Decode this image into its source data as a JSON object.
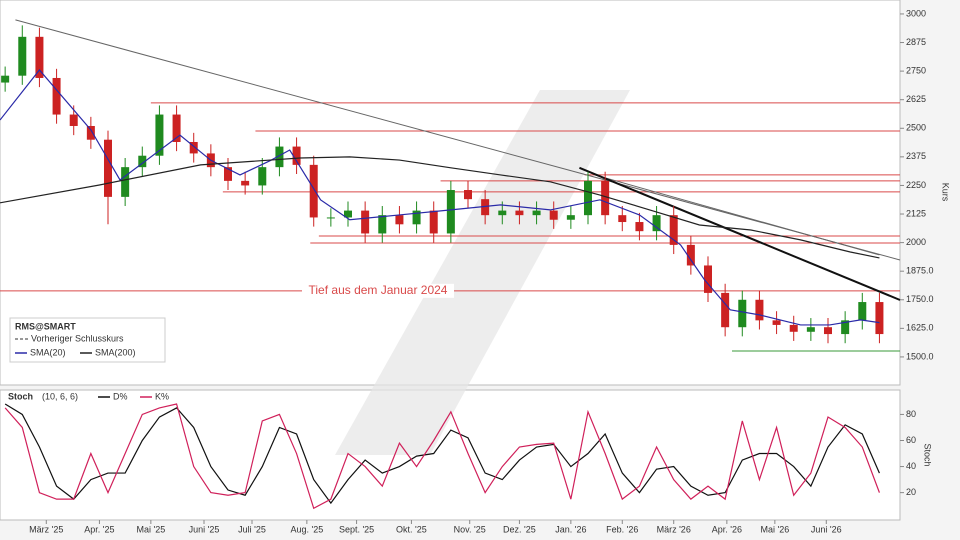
{
  "chart_data": [
    {
      "type": "candlestick",
      "symbol": "RMS@SMART",
      "y_label": "Kurs",
      "x": [
        3,
        13,
        23,
        33,
        43,
        53,
        63,
        73,
        83,
        93,
        103,
        113,
        123,
        133,
        143,
        153,
        163,
        173,
        183,
        193,
        203,
        213,
        223,
        233,
        243,
        253,
        263,
        273,
        283,
        293,
        303,
        313,
        323,
        333,
        343,
        353,
        363,
        373,
        383,
        393,
        403,
        413,
        423,
        433,
        443,
        453,
        463,
        473,
        483,
        493,
        503,
        513
      ],
      "open": [
        2700,
        2730,
        2900,
        2720,
        2560,
        2510,
        2450,
        2200,
        2330,
        2380,
        2560,
        2440,
        2390,
        2330,
        2270,
        2250,
        2330,
        2420,
        2340,
        2110,
        2110,
        2140,
        2040,
        2120,
        2080,
        2140,
        2040,
        2230,
        2190,
        2120,
        2140,
        2120,
        2140,
        2100,
        2120,
        2270,
        2120,
        2090,
        2050,
        2120,
        1990,
        1900,
        1780,
        1630,
        1750,
        1660,
        1640,
        1610,
        1630,
        1600,
        1660,
        1740
      ],
      "high": [
        2770,
        2950,
        2940,
        2760,
        2600,
        2550,
        2490,
        2370,
        2420,
        2600,
        2600,
        2480,
        2430,
        2370,
        2310,
        2370,
        2460,
        2460,
        2380,
        2150,
        2180,
        2180,
        2160,
        2160,
        2180,
        2180,
        2270,
        2270,
        2230,
        2180,
        2180,
        2180,
        2180,
        2160,
        2310,
        2310,
        2160,
        2130,
        2160,
        2160,
        2030,
        1940,
        1820,
        1790,
        1790,
        1700,
        1680,
        1670,
        1670,
        1700,
        1780,
        1780
      ],
      "low": [
        2660,
        2690,
        2680,
        2520,
        2470,
        2410,
        2080,
        2160,
        2290,
        2340,
        2400,
        2350,
        2290,
        2230,
        2210,
        2210,
        2290,
        2300,
        2070,
        2070,
        2070,
        2000,
        2000,
        2040,
        2040,
        2000,
        2000,
        2150,
        2080,
        2080,
        2080,
        2080,
        2060,
        2060,
        2080,
        2080,
        2050,
        2010,
        2010,
        1950,
        1860,
        1740,
        1590,
        1590,
        1620,
        1600,
        1570,
        1570,
        1560,
        1560,
        1620,
        1560
      ],
      "close": [
        2730,
        2900,
        2720,
        2560,
        2510,
        2450,
        2200,
        2330,
        2380,
        2560,
        2440,
        2390,
        2330,
        2270,
        2250,
        2330,
        2420,
        2340,
        2110,
        2110,
        2140,
        2040,
        2120,
        2080,
        2140,
        2040,
        2230,
        2190,
        2120,
        2140,
        2120,
        2140,
        2100,
        2120,
        2270,
        2120,
        2090,
        2050,
        2120,
        1990,
        1900,
        1780,
        1630,
        1750,
        1660,
        1640,
        1610,
        1630,
        1600,
        1660,
        1740,
        1600
      ],
      "up_color": "#1f8a1f",
      "down_color": "#cc2222",
      "xlim": [
        0,
        525
      ],
      "xticks": [
        {
          "value": 27,
          "label": "März '25"
        },
        {
          "value": 58,
          "label": "Apr. '25"
        },
        {
          "value": 88,
          "label": "Mai '25"
        },
        {
          "value": 119,
          "label": "Juni '25"
        },
        {
          "value": 147,
          "label": "Juli '25"
        },
        {
          "value": 179,
          "label": "Aug. '25"
        },
        {
          "value": 208,
          "label": "Sept. '25"
        },
        {
          "value": 240,
          "label": "Okt. '25"
        },
        {
          "value": 274,
          "label": "Nov. '25"
        },
        {
          "value": 303,
          "label": "Dez. '25"
        },
        {
          "value": 333,
          "label": "Jan. '26"
        },
        {
          "value": 363,
          "label": "Feb. '26"
        },
        {
          "value": 393,
          "label": "März '26"
        },
        {
          "value": 424,
          "label": "Apr. '26"
        },
        {
          "value": 452,
          "label": "Mai '26"
        },
        {
          "value": 482,
          "label": "Juni '26"
        }
      ],
      "ylim": [
        1386,
        3061
      ],
      "yticks": [
        {
          "value": 1500,
          "label": "1500.0"
        },
        {
          "value": 1625,
          "label": "1625.0"
        },
        {
          "value": 1750,
          "label": "1750.0"
        },
        {
          "value": 1875,
          "label": "1875.0"
        },
        2000,
        2125,
        2250,
        2375,
        2500,
        2625,
        2750,
        2875,
        3000
      ],
      "legend_extra": "Vorheriger Schlusskurs",
      "overlays": [
        {
          "name": "SMA(20)",
          "color": "#2a2aa8",
          "x": [
            0,
            23,
            53,
            70,
            105,
            123,
            140,
            158,
            169,
            187,
            204,
            233,
            263,
            292,
            321,
            350,
            373,
            397,
            411,
            426,
            443,
            467,
            484,
            502,
            513
          ],
          "values": [
            2536,
            2755,
            2493,
            2274,
            2470,
            2360,
            2296,
            2360,
            2405,
            2187,
            2100,
            2121,
            2143,
            2165,
            2143,
            2187,
            2121,
            1990,
            1837,
            1706,
            1684,
            1640,
            1640,
            1662,
            1650
          ]
        },
        {
          "name": "SMA(200)",
          "color": "#222222",
          "x": [
            0,
            58,
            117,
            175,
            204,
            233,
            263,
            292,
            321,
            350,
            379,
            408,
            438,
            467,
            496,
            513
          ],
          "values": [
            2174,
            2252,
            2340,
            2370,
            2375,
            2361,
            2327,
            2296,
            2266,
            2208,
            2143,
            2077,
            2055,
            2012,
            1959,
            1933
          ]
        }
      ],
      "levels": [
        {
          "value": 2611,
          "from": 88,
          "color": "#d94a4a"
        },
        {
          "value": 2488,
          "from": 149,
          "color": "#d94a4a"
        },
        {
          "value": 2296,
          "from": 341,
          "color": "#d94a4a"
        },
        {
          "value": 2270,
          "from": 257,
          "color": "#d94a4a"
        },
        {
          "value": 2222,
          "from": 130,
          "color": "#d94a4a"
        },
        {
          "value": 2029,
          "from": 186,
          "color": "#d94a4a"
        },
        {
          "value": 1998,
          "from": 181,
          "color": "#d94a4a"
        },
        {
          "value": 1789,
          "from": 0,
          "color": "#d94a4a",
          "label": "Tief aus dem Januar 2024"
        },
        {
          "value": 1526,
          "from": 427,
          "color": "#3a9a3a"
        }
      ],
      "trendlines": [
        {
          "x": [
            9,
            525
          ],
          "values": [
            2974,
            1924
          ],
          "color": "#666666",
          "width": 1
        },
        {
          "x": [
            347,
            513
          ],
          "values": [
            2296,
            1946
          ],
          "color": "#666666",
          "width": 1
        },
        {
          "x": [
            338,
            525
          ],
          "values": [
            2327,
            1749
          ],
          "color": "#111111",
          "width": 2
        }
      ]
    },
    {
      "type": "line",
      "title": "Stoch",
      "params": "(10, 6, 6)",
      "y_label": "Stoch",
      "x": [
        3,
        13,
        23,
        33,
        43,
        53,
        63,
        73,
        83,
        93,
        103,
        113,
        123,
        133,
        143,
        153,
        163,
        173,
        183,
        193,
        203,
        213,
        223,
        233,
        243,
        253,
        263,
        273,
        283,
        293,
        303,
        313,
        323,
        333,
        343,
        353,
        363,
        373,
        383,
        393,
        403,
        413,
        423,
        433,
        443,
        453,
        463,
        473,
        483,
        493,
        503,
        513
      ],
      "xlim": [
        0,
        525
      ],
      "ylim": [
        -1,
        88
      ],
      "yticks": [
        20,
        40,
        60,
        80
      ],
      "series": [
        {
          "name": "D%",
          "color": "#111111",
          "values": [
            88,
            80,
            55,
            25,
            15,
            30,
            35,
            35,
            60,
            78,
            85,
            70,
            40,
            22,
            18,
            40,
            70,
            65,
            30,
            12,
            30,
            45,
            35,
            40,
            48,
            50,
            68,
            62,
            35,
            30,
            45,
            55,
            57,
            40,
            50,
            65,
            35,
            20,
            38,
            40,
            25,
            18,
            20,
            45,
            50,
            50,
            40,
            25,
            55,
            72,
            65,
            35
          ]
        },
        {
          "name": "K%",
          "color": "#d0205a",
          "values": [
            85,
            70,
            20,
            15,
            15,
            50,
            20,
            50,
            80,
            85,
            88,
            40,
            20,
            18,
            20,
            75,
            80,
            50,
            8,
            15,
            50,
            40,
            25,
            58,
            40,
            60,
            82,
            50,
            20,
            40,
            55,
            57,
            58,
            15,
            82,
            50,
            15,
            25,
            55,
            30,
            15,
            25,
            15,
            75,
            30,
            70,
            18,
            35,
            78,
            70,
            55,
            20
          ]
        }
      ]
    }
  ]
}
